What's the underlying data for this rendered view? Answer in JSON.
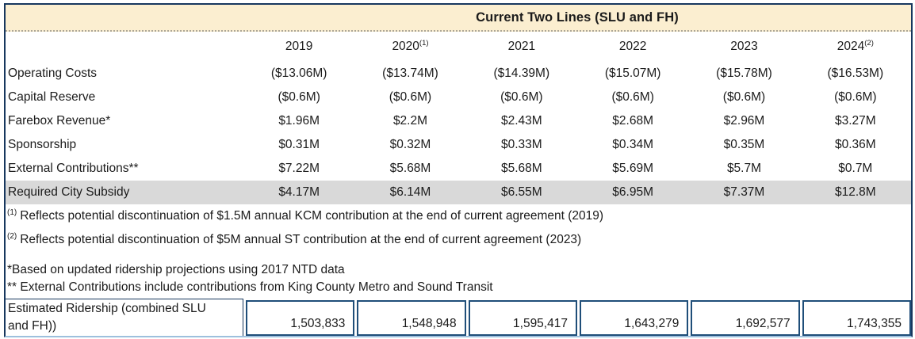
{
  "chart_data": {
    "type": "table",
    "title": "Current Two Lines (SLU and FH)",
    "columns": [
      "2019",
      "2020",
      "2021",
      "2022",
      "2023",
      "2024"
    ],
    "column_superscripts": [
      "",
      "(1)",
      "",
      "",
      "",
      "(2)"
    ],
    "rows": [
      {
        "label": "Operating Costs",
        "values": [
          "($13.06M)",
          "($13.74M)",
          "($14.39M)",
          "($15.07M)",
          "($15.78M)",
          "($16.53M)"
        ],
        "highlight": false
      },
      {
        "label": "Capital Reserve",
        "values": [
          "($0.6M)",
          "($0.6M)",
          "($0.6M)",
          "($0.6M)",
          "($0.6M)",
          "($0.6M)"
        ],
        "highlight": false
      },
      {
        "label": "Farebox Revenue*",
        "values": [
          "$1.96M",
          "$2.2M",
          "$2.43M",
          "$2.68M",
          "$2.96M",
          "$3.27M"
        ],
        "highlight": false
      },
      {
        "label": "Sponsorship",
        "values": [
          "$0.31M",
          "$0.32M",
          "$0.33M",
          "$0.34M",
          "$0.35M",
          "$0.36M"
        ],
        "highlight": false
      },
      {
        "label": "External Contributions**",
        "values": [
          "$7.22M",
          "$5.68M",
          "$5.68M",
          "$5.69M",
          "$5.7M",
          "$0.7M"
        ],
        "highlight": false
      },
      {
        "label": "Required City Subsidy",
        "values": [
          "$4.17M",
          "$6.14M",
          "$6.55M",
          "$6.95M",
          "$7.37M",
          "$12.8M"
        ],
        "highlight": true
      }
    ],
    "footnotes": [
      {
        "marker": "(1)",
        "text": "Reflects potential discontinuation of $1.5M annual KCM contribution at the end of current agreement (2019)"
      },
      {
        "marker": "(2)",
        "text": "Reflects potential discontinuation of $5M annual ST contribution at the end of current agreement (2023)"
      }
    ],
    "notes": [
      "*Based on updated ridership projections using 2017 NTD data",
      "** External Contributions include contributions from King County Metro and Sound Transit"
    ],
    "ridership": {
      "label": "Estimated Ridership (combined SLU and FH))",
      "values": [
        "1,503,833",
        "1,548,948",
        "1,595,417",
        "1,643,279",
        "1,692,577",
        "1,743,355"
      ]
    }
  },
  "colors": {
    "title_band_fill": "#FBEED0",
    "highlight_row_fill": "#D9D9D9",
    "outer_border": "#17375E",
    "ridership_cell_border": "#1F4E79",
    "text": "#1B1B1B"
  }
}
